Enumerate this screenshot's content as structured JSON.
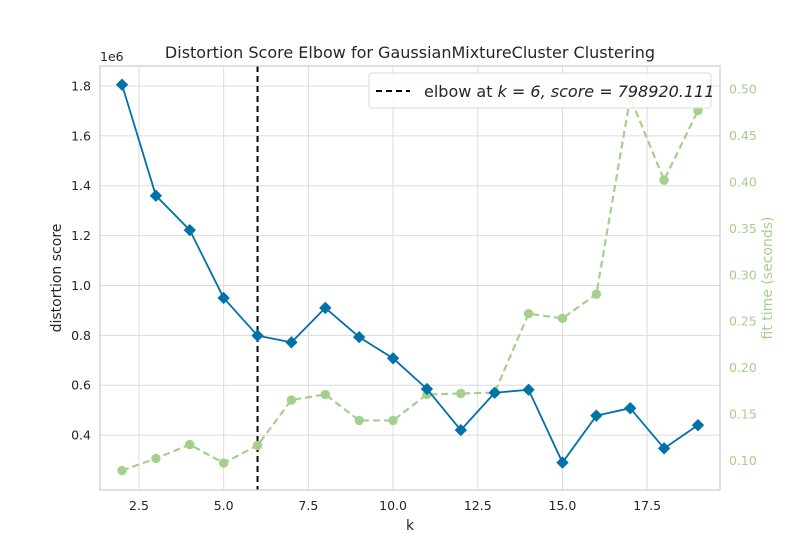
{
  "chart_data": {
    "type": "line",
    "title": "Distortion Score Elbow for GaussianMixtureCluster Clustering",
    "xlabel": "k",
    "ylabel": "distortion score",
    "y2label": "fit time (seconds)",
    "y_offset_label": "1e6",
    "xlim": [
      1.35,
      19.65
    ],
    "ylim": [
      0.18,
      1.88
    ],
    "y2lim": [
      0.068,
      0.525
    ],
    "x_ticks": [
      2.5,
      5.0,
      7.5,
      10.0,
      12.5,
      15.0,
      17.5
    ],
    "x_tick_labels": [
      "2.5",
      "5.0",
      "7.5",
      "10.0",
      "12.5",
      "15.0",
      "17.5"
    ],
    "y_ticks": [
      0.4,
      0.6,
      0.8,
      1.0,
      1.2,
      1.4,
      1.6,
      1.8
    ],
    "y_tick_labels": [
      "0.4",
      "0.6",
      "0.8",
      "1.0",
      "1.2",
      "1.4",
      "1.6",
      "1.8"
    ],
    "y2_ticks": [
      0.1,
      0.15,
      0.2,
      0.25,
      0.3,
      0.35,
      0.4,
      0.45,
      0.5
    ],
    "y2_tick_labels": [
      "0.10",
      "0.15",
      "0.20",
      "0.25",
      "0.30",
      "0.35",
      "0.40",
      "0.45",
      "0.50"
    ],
    "grid": true,
    "x": [
      2,
      3,
      4,
      5,
      6,
      7,
      8,
      9,
      10,
      11,
      12,
      13,
      14,
      15,
      16,
      17,
      18,
      19
    ],
    "series": [
      {
        "axis": "left",
        "color": "#0072a8",
        "marker": "diamond",
        "values": [
          1.805,
          1.36,
          1.222,
          0.95,
          0.799,
          0.772,
          0.91,
          0.793,
          0.708,
          0.585,
          0.42,
          0.57,
          0.582,
          0.29,
          0.478,
          0.508,
          0.347,
          0.44
        ]
      },
      {
        "axis": "right",
        "color": "#a5cf8d",
        "marker": "circle",
        "dashed": true,
        "values": [
          0.089,
          0.102,
          0.117,
          0.097,
          0.116,
          0.165,
          0.171,
          0.143,
          0.143,
          0.171,
          0.172,
          0.173,
          0.258,
          0.253,
          0.279,
          0.491,
          0.402,
          0.477
        ]
      }
    ],
    "elbow": {
      "x": 6,
      "legend_prefix": "elbow at ",
      "legend_math": "k = 6, score = 798920.111"
    },
    "legend_placement": "top-right"
  }
}
